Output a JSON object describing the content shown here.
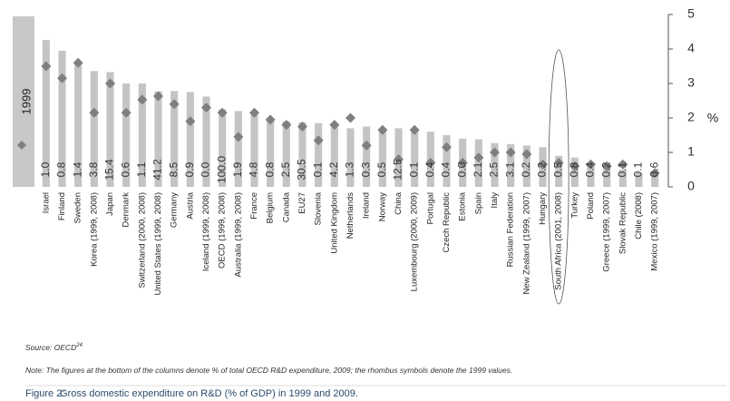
{
  "chart_data": {
    "type": "bar",
    "categories": [
      "Israel",
      "Finland",
      "Sweden",
      "Korea (1999, 2008)",
      "Japan",
      "Denmark",
      "Switzerland (2000, 2008)",
      "United States (1999, 2008)",
      "Germany",
      "Austria",
      "Iceland (1999, 2008)",
      "OECD (1999, 2008)",
      "Australia (1999, 2008)",
      "France",
      "Belgium",
      "Canada",
      "EU27",
      "Slovenia",
      "United Kingdom",
      "Netherlands",
      "Ireland",
      "Norway",
      "China",
      "Luxembourg (2000, 2009)",
      "Portugal",
      "Czech Republic",
      "Estonia",
      "Spain",
      "Italy",
      "Russian Federation",
      "New Zealand (1999, 2007)",
      "Hungary",
      "South Africa (2001, 2008)",
      "Turkey",
      "Poland",
      "Greece (1999, 2007)",
      "Slovak Republic",
      "Chile (2008)",
      "Mexico (1999, 2007)"
    ],
    "series": [
      {
        "color": "#c4c4c4",
        "values": [
          4.26,
          3.95,
          3.62,
          3.36,
          3.33,
          3.0,
          3.0,
          2.77,
          2.78,
          2.75,
          2.62,
          2.25,
          2.2,
          2.1,
          2.0,
          1.9,
          1.87,
          1.85,
          1.8,
          1.7,
          1.75,
          1.7,
          1.7,
          1.6,
          1.6,
          1.5,
          1.4,
          1.38,
          1.27,
          1.24,
          1.2,
          1.15,
          0.9,
          0.85,
          0.7,
          0.6,
          0.5,
          0.4,
          0.37
        ],
        "value_labels": [
          "1.0",
          "0.8",
          "1.4",
          "3.8",
          "15.4",
          "0.6",
          "1.1",
          "41.2",
          "8.5",
          "0.9",
          "0.0",
          "100.0",
          "1.9",
          "4.8",
          "0.8",
          "2.5",
          "30.5",
          "0.1",
          "4.2",
          "1.3",
          "0.3",
          "0.5",
          "12.5",
          "0.1",
          "0.4",
          "0.4",
          "0.0",
          "2.1",
          "2.5",
          "3.1",
          "0.2",
          "0.2",
          "0.5",
          "0.8",
          "0.4",
          "0.2",
          "0.1",
          "0.1",
          "0.6"
        ]
      },
      {
        "name": "1999",
        "color": "#7f7f7f",
        "values": [
          3.5,
          3.15,
          3.6,
          2.15,
          3.0,
          2.15,
          2.53,
          2.63,
          2.4,
          1.9,
          2.3,
          2.15,
          1.45,
          2.15,
          1.95,
          1.8,
          1.75,
          1.35,
          1.8,
          2.0,
          1.2,
          1.65,
          0.8,
          1.65,
          0.7,
          1.15,
          0.7,
          0.85,
          1.0,
          1.0,
          0.95,
          0.65,
          0.7,
          0.6,
          0.65,
          0.6,
          0.65,
          null,
          0.4
        ]
      }
    ],
    "ylabel": "%",
    "ylim": [
      0,
      5
    ],
    "yticks": [
      0,
      1,
      2,
      3,
      4,
      5
    ],
    "source": "Source: OECD",
    "source_ref": "24",
    "note": "Note: The figures at the bottom of the columns denote % of total OECD R&D expenditure, 2009; the rhombus symbols denote the 1999 values.",
    "figure_label": "Figure 2:",
    "caption": "Gross domestic expenditure on R&D (% of GDP) in 1999 and 2009."
  }
}
